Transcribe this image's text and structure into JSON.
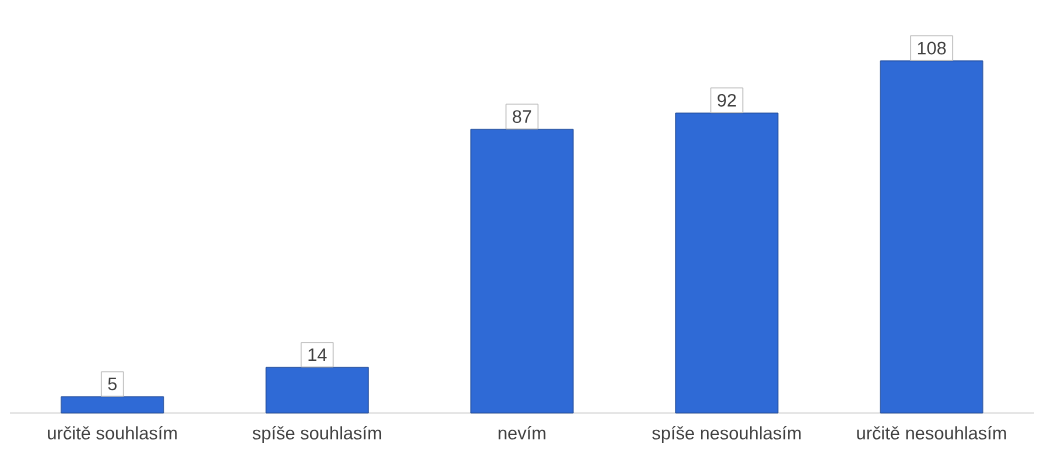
{
  "chart_data": {
    "type": "bar",
    "categories": [
      "určitě souhlasím",
      "spíše souhlasím",
      "nevím",
      "spíše nesouhlasím",
      "určitě nesouhlasím"
    ],
    "values": [
      5,
      14,
      87,
      92,
      108
    ],
    "color": "#2f6ad6",
    "data_labels": true
  }
}
